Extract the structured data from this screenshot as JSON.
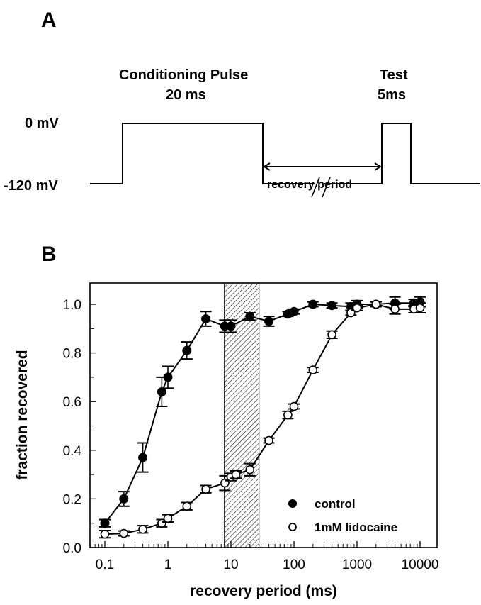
{
  "panel_a": {
    "panel_label": "A",
    "conditioning_title": "Conditioning Pulse",
    "conditioning_duration": "20 ms",
    "test_title": "Test",
    "test_duration": "5ms",
    "level_high": "0 mV",
    "level_low": "-120 mV",
    "interval_label": "recovery period"
  },
  "panel_b": {
    "panel_label": "B"
  },
  "chart_data": {
    "type": "scatter",
    "title": "",
    "xlabel": "recovery period (ms)",
    "ylabel": "fraction recovered",
    "xscale": "log",
    "xlim": [
      0.07,
      14000
    ],
    "ylim": [
      0.0,
      1.09
    ],
    "x_ticks": [
      0.1,
      1,
      10,
      100,
      1000,
      10000
    ],
    "x_tick_labels": [
      "0.1",
      "1",
      "10",
      "100",
      "1000",
      "10000"
    ],
    "y_ticks": [
      0.0,
      0.2,
      0.4,
      0.6,
      0.8,
      1.0
    ],
    "y_tick_labels": [
      "0.0",
      "0.2",
      "0.4",
      "0.6",
      "0.8",
      "1.0"
    ],
    "grid": false,
    "legend_position": "bottom-right",
    "shaded_region": {
      "x_start": 7.8,
      "x_end": 28,
      "pattern": "hatched"
    },
    "series": [
      {
        "name": "control",
        "marker": "filled-circle",
        "x": [
          0.1,
          0.2,
          0.4,
          0.8,
          1,
          2,
          4,
          8,
          10,
          20,
          40,
          80,
          100,
          200,
          400,
          800,
          1000,
          2000,
          4000,
          8000,
          10000
        ],
        "y": [
          0.1,
          0.2,
          0.37,
          0.64,
          0.7,
          0.81,
          0.94,
          0.91,
          0.91,
          0.95,
          0.93,
          0.96,
          0.97,
          1.0,
          0.995,
          0.99,
          1.0,
          1.0,
          1.005,
          1.005,
          1.01
        ],
        "err": [
          0.015,
          0.03,
          0.06,
          0.06,
          0.045,
          0.035,
          0.03,
          0.025,
          0.025,
          0.015,
          0.02,
          0.01,
          0.01,
          0.01,
          0.01,
          0.015,
          0.015,
          0.01,
          0.025,
          0.015,
          0.02
        ]
      },
      {
        "name": "1mM lidocaine",
        "marker": "open-circle",
        "x": [
          0.1,
          0.2,
          0.4,
          0.8,
          1,
          2,
          4,
          8,
          10,
          12,
          20,
          40,
          80,
          100,
          200,
          400,
          800,
          1000,
          2000,
          4000,
          8000,
          10000
        ],
        "y": [
          0.055,
          0.058,
          0.075,
          0.1,
          0.12,
          0.17,
          0.24,
          0.265,
          0.29,
          0.3,
          0.32,
          0.44,
          0.545,
          0.58,
          0.73,
          0.875,
          0.965,
          0.985,
          1.0,
          0.98,
          0.98,
          0.985
        ],
        "err": [
          0.015,
          0.01,
          0.015,
          0.015,
          0.015,
          0.015,
          0.015,
          0.03,
          0.015,
          0.015,
          0.025,
          0.01,
          0.015,
          0.01,
          0.01,
          0.015,
          0.01,
          0.01,
          0.01,
          0.02,
          0.015,
          0.02
        ]
      }
    ]
  }
}
